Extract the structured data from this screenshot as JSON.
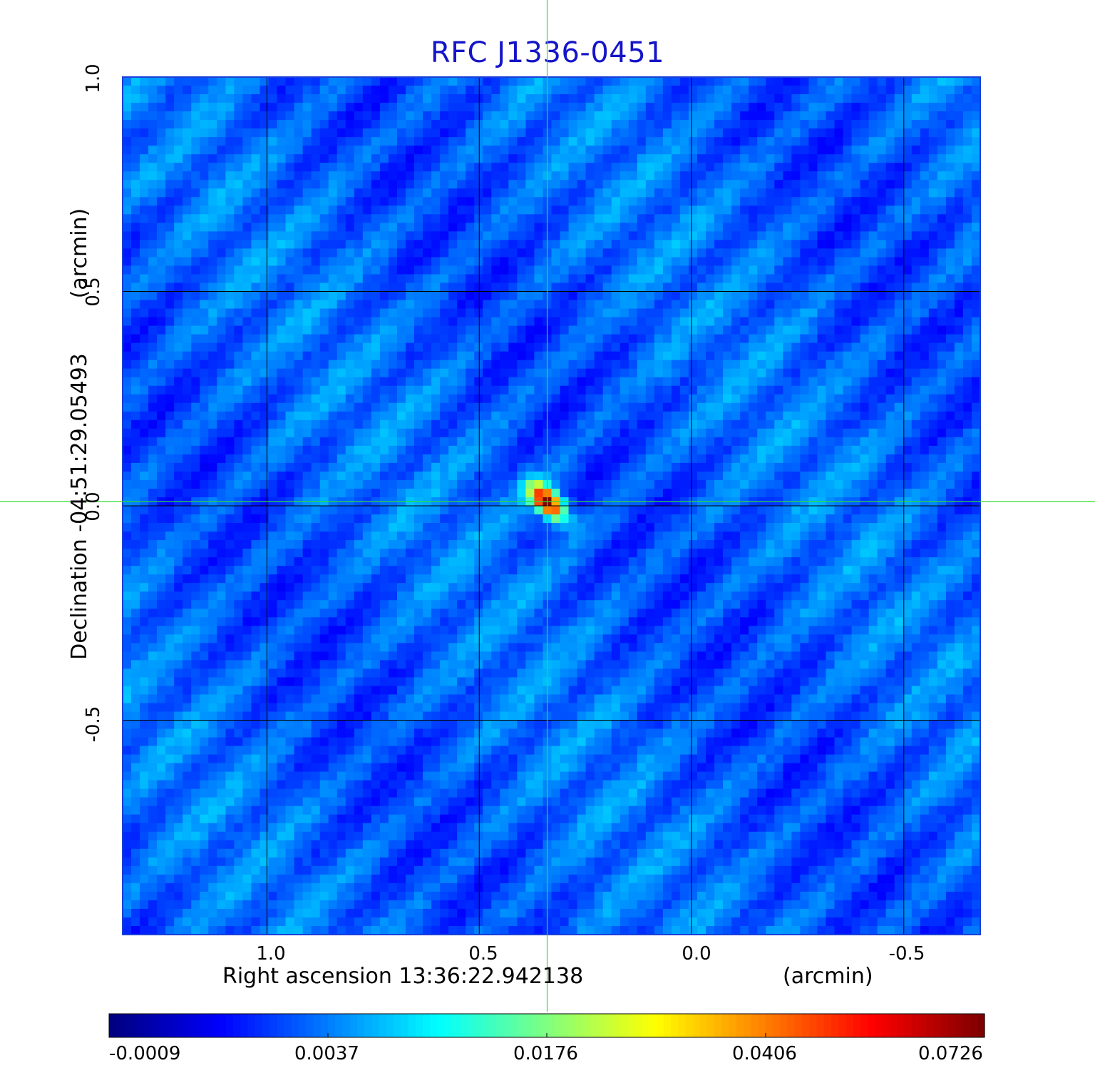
{
  "chart_data": {
    "type": "heatmap",
    "title": "RFC J1336-0451",
    "xlabel": "Right ascension  13:36:22.942138",
    "xunit": "(arcmin)",
    "ylabel": "Declination  -04:51:29.05493",
    "yunit": "(arcmin)",
    "x_reversed": true,
    "xlim": [
      1.34,
      -0.68
    ],
    "ylim": [
      -1.0,
      1.0
    ],
    "x_ticks": [
      "1.0",
      "0.5",
      "0.0",
      "-0.5"
    ],
    "x_tick_values": [
      1.0,
      0.5,
      0.0,
      -0.5
    ],
    "y_ticks": [
      "1.0",
      "0.5",
      "0.0",
      "-0.5"
    ],
    "y_tick_values": [
      1.0,
      0.5,
      0.0,
      -0.5
    ],
    "grid": true,
    "crosshair": {
      "x": 0.34,
      "y": 0.01,
      "color": "#33dd33"
    },
    "source": {
      "x": 0.34,
      "y": 0.01,
      "peak": 0.0726
    },
    "colorbar": {
      "colormap": "jet",
      "ticks": [
        "-0.0009",
        "0.0037",
        "0.0176",
        "0.0406",
        "0.0726"
      ],
      "min": -0.0009,
      "max": 0.0726
    }
  }
}
